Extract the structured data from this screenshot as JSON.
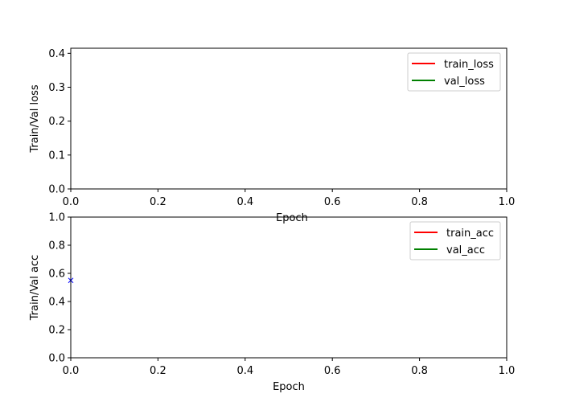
{
  "chart_data": [
    {
      "type": "line",
      "xlabel": "Epoch",
      "ylabel": "Train/Val loss",
      "xlim": [
        0,
        1
      ],
      "ylim": [
        0,
        0.415
      ],
      "xticks": [
        "0.0",
        "0.2",
        "0.4",
        "0.6",
        "0.8",
        "1.0"
      ],
      "yticks": [
        "0.0",
        "0.1",
        "0.2",
        "0.3",
        "0.4"
      ],
      "legend_position": "top-right",
      "grid": false,
      "series": [
        {
          "name": "train_loss",
          "color": "#ff0000",
          "x": [],
          "y": []
        },
        {
          "name": "val_loss",
          "color": "#008000",
          "x": [],
          "y": []
        }
      ]
    },
    {
      "type": "line",
      "xlabel": "Epoch",
      "ylabel": "Train/Val acc",
      "xlim": [
        0,
        1
      ],
      "ylim": [
        0,
        1
      ],
      "xticks": [
        "0.0",
        "0.2",
        "0.4",
        "0.6",
        "0.8",
        "1.0"
      ],
      "yticks": [
        "0.0",
        "0.2",
        "0.4",
        "0.6",
        "0.8",
        "1.0"
      ],
      "legend_position": "top-right",
      "grid": false,
      "series": [
        {
          "name": "train_acc",
          "color": "#ff0000",
          "x": [],
          "y": []
        },
        {
          "name": "val_acc",
          "color": "#008000",
          "x": [],
          "y": []
        }
      ],
      "markers": [
        {
          "x": 0,
          "y": 0.55,
          "symbol": "x",
          "color": "#0000ff"
        }
      ]
    }
  ]
}
